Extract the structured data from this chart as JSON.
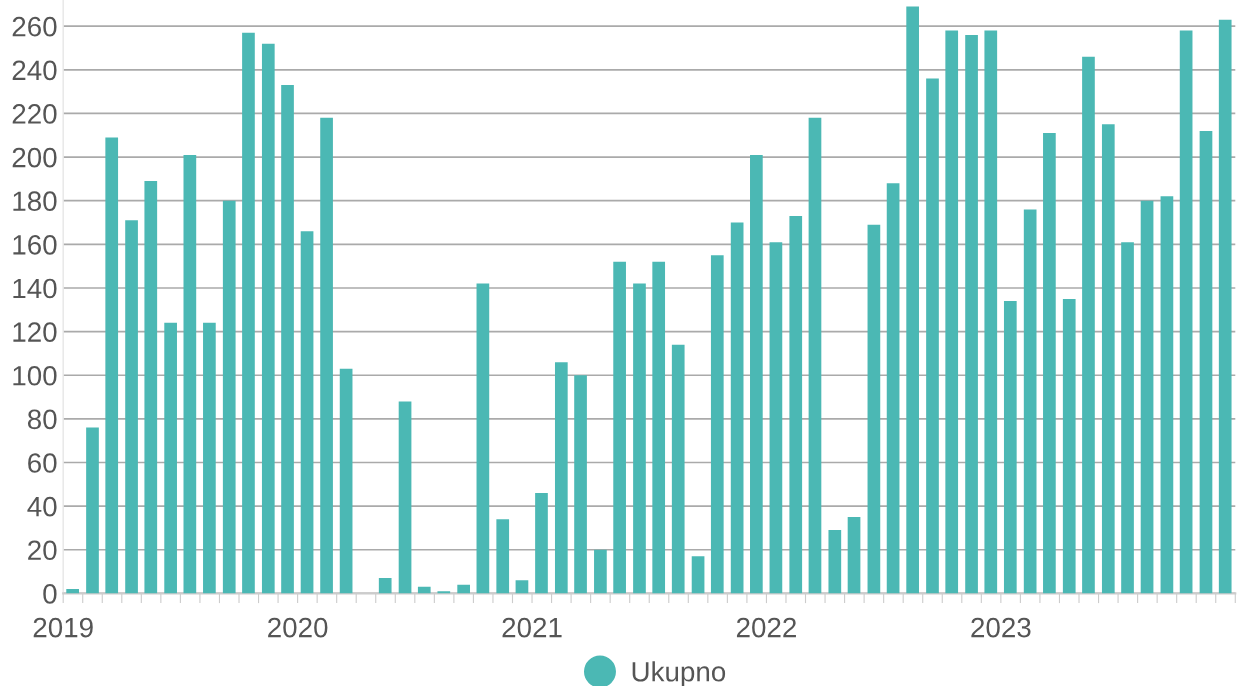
{
  "chart_data": {
    "type": "bar",
    "x": [
      "2019-01-16",
      "2019-02-15",
      "2019-03-16",
      "2019-04-16",
      "2019-05-16",
      "2019-06-16",
      "2019-07-16",
      "2019-08-16",
      "2019-09-16",
      "2019-10-16",
      "2019-11-16",
      "2019-12-16",
      "2020-01-16",
      "2020-02-15",
      "2020-03-16",
      "2020-04-16",
      "2020-05-16",
      "2020-06-16",
      "2020-07-16",
      "2020-08-16",
      "2020-09-16",
      "2020-10-16",
      "2020-11-16",
      "2020-12-16",
      "2021-01-16",
      "2021-02-15",
      "2021-03-16",
      "2021-04-16",
      "2021-05-16",
      "2021-06-16",
      "2021-07-16",
      "2021-08-16",
      "2021-09-16",
      "2021-10-16",
      "2021-11-16",
      "2021-12-16",
      "2022-01-16",
      "2022-02-15",
      "2022-03-16",
      "2022-04-16",
      "2022-05-16",
      "2022-06-16",
      "2022-07-16",
      "2022-08-16",
      "2022-09-16",
      "2022-10-16",
      "2022-11-16",
      "2022-12-16",
      "2023-01-16",
      "2023-02-15",
      "2023-03-16",
      "2023-04-16",
      "2023-05-16",
      "2023-06-16",
      "2023-07-16",
      "2023-08-16",
      "2023-09-16",
      "2023-10-16",
      "2023-11-16",
      "2023-12-16"
    ],
    "series": [
      {
        "name": "Ukupno",
        "color": "#4bb8b4",
        "values": [
          2,
          76,
          209,
          171,
          189,
          124,
          201,
          124,
          180,
          257,
          252,
          233,
          166,
          218,
          103,
          0,
          7,
          88,
          3,
          1,
          4,
          142,
          34,
          6,
          46,
          106,
          100,
          20,
          152,
          142,
          152,
          114,
          17,
          155,
          170,
          201,
          161,
          173,
          218,
          29,
          35,
          169,
          188,
          269,
          236,
          258,
          256,
          258,
          134,
          176,
          211,
          135,
          246,
          215,
          161,
          180,
          182,
          258,
          212,
          263
        ]
      }
    ],
    "xlim": [
      "2019-01",
      "2024-01"
    ],
    "xticks": [
      {
        "value": "2019-01",
        "label": "2019"
      },
      {
        "value": "2019-02",
        "label": null
      },
      {
        "value": "2019-03",
        "label": null
      },
      {
        "value": "2019-04",
        "label": null
      },
      {
        "value": "2019-05",
        "label": null
      },
      {
        "value": "2019-06",
        "label": null
      },
      {
        "value": "2019-07",
        "label": null
      },
      {
        "value": "2019-08",
        "label": null
      },
      {
        "value": "2019-09",
        "label": null
      },
      {
        "value": "2019-10",
        "label": null
      },
      {
        "value": "2019-11",
        "label": null
      },
      {
        "value": "2019-12",
        "label": null
      },
      {
        "value": "2020-01",
        "label": "2020"
      },
      {
        "value": "2020-02",
        "label": null
      },
      {
        "value": "2020-03",
        "label": null
      },
      {
        "value": "2020-04",
        "label": null
      },
      {
        "value": "2020-05",
        "label": null
      },
      {
        "value": "2020-06",
        "label": null
      },
      {
        "value": "2020-07",
        "label": null
      },
      {
        "value": "2020-08",
        "label": null
      },
      {
        "value": "2020-09",
        "label": null
      },
      {
        "value": "2020-10",
        "label": null
      },
      {
        "value": "2020-11",
        "label": null
      },
      {
        "value": "2020-12",
        "label": null
      },
      {
        "value": "2021-01",
        "label": "2021"
      },
      {
        "value": "2021-02",
        "label": null
      },
      {
        "value": "2021-03",
        "label": null
      },
      {
        "value": "2021-04",
        "label": null
      },
      {
        "value": "2021-05",
        "label": null
      },
      {
        "value": "2021-06",
        "label": null
      },
      {
        "value": "2021-07",
        "label": null
      },
      {
        "value": "2021-08",
        "label": null
      },
      {
        "value": "2021-09",
        "label": null
      },
      {
        "value": "2021-10",
        "label": null
      },
      {
        "value": "2021-11",
        "label": null
      },
      {
        "value": "2021-12",
        "label": null
      },
      {
        "value": "2022-01",
        "label": "2022"
      },
      {
        "value": "2022-02",
        "label": null
      },
      {
        "value": "2022-03",
        "label": null
      },
      {
        "value": "2022-04",
        "label": null
      },
      {
        "value": "2022-05",
        "label": null
      },
      {
        "value": "2022-06",
        "label": null
      },
      {
        "value": "2022-07",
        "label": null
      },
      {
        "value": "2022-08",
        "label": null
      },
      {
        "value": "2022-09",
        "label": null
      },
      {
        "value": "2022-10",
        "label": null
      },
      {
        "value": "2022-11",
        "label": null
      },
      {
        "value": "2022-12",
        "label": null
      },
      {
        "value": "2023-01",
        "label": "2023"
      },
      {
        "value": "2023-02",
        "label": null
      },
      {
        "value": "2023-03",
        "label": null
      },
      {
        "value": "2023-04",
        "label": null
      },
      {
        "value": "2023-05",
        "label": null
      },
      {
        "value": "2023-06",
        "label": null
      },
      {
        "value": "2023-07",
        "label": null
      },
      {
        "value": "2023-08",
        "label": null
      },
      {
        "value": "2023-09",
        "label": null
      },
      {
        "value": "2023-10",
        "label": null
      },
      {
        "value": "2023-11",
        "label": null
      },
      {
        "value": "2023-12",
        "label": null
      },
      {
        "value": "2024-01",
        "label": null
      }
    ],
    "ylim": [
      0,
      272
    ],
    "yticks": [
      0,
      20,
      40,
      60,
      80,
      100,
      120,
      140,
      160,
      180,
      200,
      220,
      240,
      260
    ],
    "grid": "y",
    "legend": "bottom"
  }
}
